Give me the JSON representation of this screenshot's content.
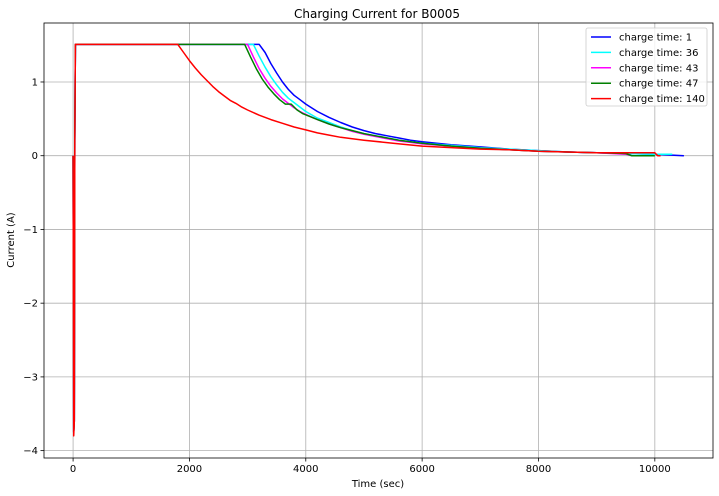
{
  "chart_data": {
    "type": "line",
    "title": "Charging Current for B0005",
    "xlabel": "Time (sec)",
    "ylabel": "Current (A)",
    "xlim": [
      -500,
      11000
    ],
    "ylim": [
      -4.1,
      1.8
    ],
    "xticks": [
      0,
      2000,
      4000,
      6000,
      8000,
      10000
    ],
    "xtick_labels": [
      "0",
      "2000",
      "4000",
      "6000",
      "8000",
      "10000"
    ],
    "yticks": [
      -4,
      -3,
      -2,
      -1,
      0,
      1
    ],
    "ytick_labels": [
      "−4",
      "−3",
      "−2",
      "−1",
      "0",
      "1"
    ],
    "grid": true,
    "legend_position": "top-right",
    "series": [
      {
        "name": "charge time: 1",
        "color": "#0000ff",
        "x": [
          0,
          10,
          20,
          30,
          40,
          3200,
          3300,
          3400,
          3500,
          3600,
          3700,
          3800,
          3900,
          4000,
          4200,
          4400,
          4600,
          4800,
          5000,
          5200,
          5400,
          5600,
          5800,
          6000,
          6500,
          7000,
          7500,
          8000,
          8500,
          9000,
          9500,
          10000,
          10500
        ],
        "y": [
          0,
          -3.75,
          -3.6,
          0.2,
          1.51,
          1.51,
          1.4,
          1.25,
          1.12,
          1.0,
          0.9,
          0.82,
          0.76,
          0.7,
          0.6,
          0.52,
          0.45,
          0.39,
          0.34,
          0.3,
          0.27,
          0.24,
          0.21,
          0.19,
          0.15,
          0.12,
          0.09,
          0.07,
          0.05,
          0.04,
          0.03,
          0.02,
          0.0
        ]
      },
      {
        "name": "charge time: 36",
        "color": "#00ffff",
        "x": [
          0,
          10,
          20,
          30,
          40,
          3100,
          3200,
          3300,
          3400,
          3500,
          3600,
          3700,
          3800,
          3900,
          4000,
          4200,
          4400,
          4600,
          4800,
          5000,
          5200,
          5400,
          5600,
          5800,
          6000,
          6500,
          7000,
          7500,
          8000,
          8500,
          9000,
          9500,
          10000,
          10300
        ],
        "y": [
          0,
          -3.75,
          -3.6,
          0.2,
          1.51,
          1.51,
          1.35,
          1.2,
          1.07,
          0.96,
          0.86,
          0.78,
          0.72,
          0.66,
          0.6,
          0.51,
          0.45,
          0.39,
          0.34,
          0.3,
          0.27,
          0.24,
          0.21,
          0.19,
          0.17,
          0.14,
          0.11,
          0.09,
          0.07,
          0.05,
          0.04,
          0.03,
          0.02,
          0.02
        ]
      },
      {
        "name": "charge time: 43",
        "color": "#ff00ff",
        "x": [
          0,
          10,
          20,
          30,
          40,
          3000,
          3100,
          3200,
          3300,
          3400,
          3500,
          3600,
          3700,
          3800,
          3900,
          4000,
          4200,
          4400,
          4600,
          4800,
          5000,
          5200,
          5400,
          5600,
          5800,
          6000,
          6500,
          7000,
          7500,
          8000,
          8500,
          9000,
          9500,
          9600
        ],
        "y": [
          0,
          -3.75,
          -3.6,
          0.2,
          1.51,
          1.51,
          1.34,
          1.18,
          1.05,
          0.94,
          0.85,
          0.77,
          0.71,
          0.65,
          0.6,
          0.56,
          0.49,
          0.43,
          0.38,
          0.33,
          0.29,
          0.26,
          0.23,
          0.2,
          0.18,
          0.16,
          0.13,
          0.1,
          0.08,
          0.06,
          0.05,
          0.04,
          0.02,
          0.0
        ]
      },
      {
        "name": "charge time: 47",
        "color": "#008000",
        "x": [
          0,
          10,
          20,
          30,
          40,
          2950,
          3050,
          3150,
          3250,
          3350,
          3450,
          3550,
          3650,
          3750,
          3850,
          3950,
          4200,
          4400,
          4600,
          4800,
          5000,
          5200,
          5400,
          5600,
          5800,
          6000,
          6500,
          7000,
          7500,
          8000,
          8500,
          9000,
          9500,
          9600,
          9700,
          10000
        ],
        "y": [
          0,
          -3.75,
          -3.6,
          0.2,
          1.51,
          1.51,
          1.34,
          1.18,
          1.04,
          0.93,
          0.84,
          0.76,
          0.7,
          0.7,
          0.62,
          0.57,
          0.49,
          0.43,
          0.38,
          0.34,
          0.3,
          0.27,
          0.24,
          0.21,
          0.19,
          0.17,
          0.13,
          0.1,
          0.08,
          0.06,
          0.05,
          0.04,
          0.03,
          0.0,
          0.0,
          0.0
        ]
      },
      {
        "name": "charge time: 140",
        "color": "#ff0000",
        "x": [
          0,
          10,
          20,
          30,
          40,
          1800,
          1900,
          2000,
          2100,
          2200,
          2300,
          2400,
          2500,
          2600,
          2700,
          2800,
          2900,
          3000,
          3200,
          3400,
          3600,
          3800,
          4000,
          4200,
          4400,
          4600,
          4800,
          5000,
          5500,
          6000,
          6500,
          7000,
          7500,
          8000,
          8500,
          9000,
          9500,
          10000,
          10050,
          10100
        ],
        "y": [
          0,
          -3.8,
          -3.6,
          0.2,
          1.51,
          1.51,
          1.4,
          1.29,
          1.19,
          1.1,
          1.02,
          0.94,
          0.87,
          0.81,
          0.75,
          0.71,
          0.66,
          0.62,
          0.55,
          0.49,
          0.44,
          0.39,
          0.35,
          0.31,
          0.28,
          0.25,
          0.23,
          0.21,
          0.17,
          0.13,
          0.11,
          0.09,
          0.08,
          0.06,
          0.05,
          0.04,
          0.04,
          0.04,
          0.0,
          0.0
        ]
      }
    ]
  }
}
